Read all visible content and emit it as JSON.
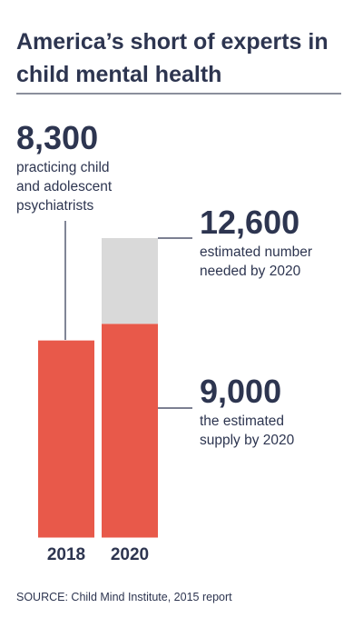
{
  "title": "America’s short of experts in child mental health",
  "source": "SOURCE: Child Mind Institute, 2015 report",
  "colors": {
    "bar": "#e8594a",
    "gap": "#d9d9d9",
    "text": "#2d3550",
    "line": "#2d3550"
  },
  "chart_data": {
    "type": "bar",
    "categories": [
      "2018",
      "2020"
    ],
    "series": [
      {
        "values": [
          8300,
          9000
        ]
      },
      {
        "values": [
          null,
          3600
        ]
      }
    ],
    "stacked": true,
    "annotations": [
      {
        "value": "8,300",
        "lines": [
          "practicing child",
          "and adolescent",
          "psychiatrists"
        ],
        "category": "2018"
      },
      {
        "value": "12,600",
        "lines": [
          "estimated number",
          "needed by 2020"
        ],
        "category": "2020"
      },
      {
        "value": "9,000",
        "lines": [
          "the estimated",
          "supply by 2020"
        ],
        "category": "2020"
      }
    ],
    "ylim": [
      0,
      12600
    ],
    "grid": false
  }
}
